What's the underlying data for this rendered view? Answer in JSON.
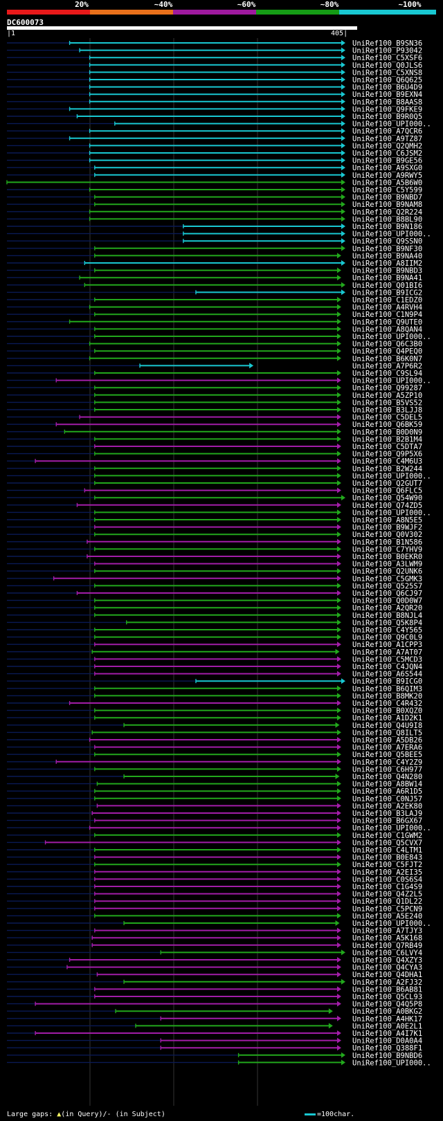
{
  "header": {
    "legend": [
      {
        "label": "20%",
        "color": "#e8191a"
      },
      {
        "label": "~40%",
        "color": "#e8701b"
      },
      {
        "label": "~60%",
        "color": "#9e1a9e"
      },
      {
        "label": "~80%",
        "color": "#159c15"
      },
      {
        "label": "~100%",
        "color": "#19c8d2"
      }
    ],
    "query_id": "DC600073",
    "ruler_start": "1",
    "ruler_end": "405"
  },
  "footer": {
    "large_gaps_label": "Large gaps:",
    "query_marker_text": "(in Query)/",
    "subject_marker_text": "(in Subject)",
    "scale_text": "=100char."
  },
  "chart_data": {
    "type": "alignment-overview",
    "query_length": 405,
    "x_range": [
      1,
      405
    ],
    "identity_classes": {
      "cyan": "~100%",
      "green": "~80%",
      "purple": "~60%"
    },
    "hits": [
      {
        "name": "UniRef100_B9SN36",
        "start": 76,
        "end": 405,
        "class": "cyan"
      },
      {
        "name": "UniRef100_P93042",
        "start": 88,
        "end": 405,
        "class": "cyan"
      },
      {
        "name": "UniRef100_C5XSF6",
        "start": 100,
        "end": 405,
        "class": "cyan"
      },
      {
        "name": "UniRef100_Q0JLS6",
        "start": 100,
        "end": 405,
        "class": "cyan"
      },
      {
        "name": "UniRef100_C5XNS8",
        "start": 100,
        "end": 405,
        "class": "cyan"
      },
      {
        "name": "UniRef100_Q6Q625",
        "start": 100,
        "end": 405,
        "class": "cyan"
      },
      {
        "name": "UniRef100_B6U4D9",
        "start": 100,
        "end": 405,
        "class": "cyan"
      },
      {
        "name": "UniRef100_B9EXN4",
        "start": 100,
        "end": 405,
        "class": "cyan"
      },
      {
        "name": "UniRef100_B8AAS8",
        "start": 100,
        "end": 405,
        "class": "cyan"
      },
      {
        "name": "UniRef100_Q9FKE9",
        "start": 76,
        "end": 405,
        "class": "cyan"
      },
      {
        "name": "UniRef100_B9R0Q5",
        "start": 85,
        "end": 405,
        "class": "cyan"
      },
      {
        "name": "UniRef100_UPI000..",
        "start": 130,
        "end": 405,
        "class": "cyan"
      },
      {
        "name": "UniRef100_A7QCR6",
        "start": 100,
        "end": 405,
        "class": "cyan"
      },
      {
        "name": "UniRef100_A9TZ87",
        "start": 76,
        "end": 405,
        "class": "cyan"
      },
      {
        "name": "UniRef100_Q2QMH2",
        "start": 100,
        "end": 405,
        "class": "cyan"
      },
      {
        "name": "UniRef100_C6JSM2",
        "start": 100,
        "end": 405,
        "class": "cyan"
      },
      {
        "name": "UniRef100_B9GE56",
        "start": 100,
        "end": 405,
        "class": "cyan"
      },
      {
        "name": "UniRef100_A9SXG0",
        "start": 106,
        "end": 405,
        "class": "cyan"
      },
      {
        "name": "UniRef100_A9RWY5",
        "start": 106,
        "end": 405,
        "class": "cyan"
      },
      {
        "name": "UniRef100_A5B6W0",
        "start": 1,
        "end": 405,
        "class": "green"
      },
      {
        "name": "UniRef100_C5Y599",
        "start": 100,
        "end": 405,
        "class": "green"
      },
      {
        "name": "UniRef100_B9NBD7",
        "start": 106,
        "end": 405,
        "class": "green"
      },
      {
        "name": "UniRef100_B9NAM8",
        "start": 106,
        "end": 405,
        "class": "green"
      },
      {
        "name": "UniRef100_Q2R224",
        "start": 100,
        "end": 405,
        "class": "green"
      },
      {
        "name": "UniRef100_B8BL90",
        "start": 100,
        "end": 405,
        "class": "green"
      },
      {
        "name": "UniRef100_B9N186",
        "start": 212,
        "end": 405,
        "class": "cyan"
      },
      {
        "name": "UniRef100_UPI000..",
        "start": 212,
        "end": 405,
        "class": "cyan"
      },
      {
        "name": "UniRef100_Q9SSN0",
        "start": 212,
        "end": 405,
        "class": "cyan"
      },
      {
        "name": "UniRef100_B9NF30",
        "start": 106,
        "end": 405,
        "class": "green"
      },
      {
        "name": "UniRef100_B9NA40",
        "start": 106,
        "end": 400,
        "class": "green"
      },
      {
        "name": "UniRef100_A8IIM2",
        "start": 94,
        "end": 405,
        "class": "cyan"
      },
      {
        "name": "UniRef100_B9NBD3",
        "start": 106,
        "end": 400,
        "class": "green"
      },
      {
        "name": "UniRef100_B9NA41",
        "start": 88,
        "end": 400,
        "class": "green"
      },
      {
        "name": "UniRef100_Q01BI6",
        "start": 94,
        "end": 405,
        "class": "green"
      },
      {
        "name": "UniRef100_B9ICG2",
        "start": 227,
        "end": 405,
        "class": "cyan"
      },
      {
        "name": "UniRef100_C1EDZ0",
        "start": 106,
        "end": 400,
        "class": "green"
      },
      {
        "name": "UniRef100_A4RVH4",
        "start": 100,
        "end": 400,
        "class": "green"
      },
      {
        "name": "UniRef100_C1N9P4",
        "start": 106,
        "end": 400,
        "class": "green"
      },
      {
        "name": "UniRef100_Q9UTE0",
        "start": 76,
        "end": 400,
        "class": "green"
      },
      {
        "name": "UniRef100_A8QAN4",
        "start": 106,
        "end": 400,
        "class": "green"
      },
      {
        "name": "UniRef100_UPI000..",
        "start": 106,
        "end": 400,
        "class": "green"
      },
      {
        "name": "UniRef100_Q6C3B0",
        "start": 100,
        "end": 400,
        "class": "green"
      },
      {
        "name": "UniRef100_Q4PEQ0",
        "start": 106,
        "end": 400,
        "class": "green"
      },
      {
        "name": "UniRef100_B6K0N7",
        "start": 100,
        "end": 400,
        "class": "green"
      },
      {
        "name": "UniRef100_A7P6R2",
        "start": 160,
        "end": 295,
        "class": "cyan"
      },
      {
        "name": "UniRef100_C9SL94",
        "start": 106,
        "end": 400,
        "class": "green"
      },
      {
        "name": "UniRef100_UPI000..",
        "start": 60,
        "end": 400,
        "class": "purple"
      },
      {
        "name": "UniRef100_Q99287",
        "start": 106,
        "end": 400,
        "class": "green"
      },
      {
        "name": "UniRef100_A5ZP10",
        "start": 106,
        "end": 400,
        "class": "green"
      },
      {
        "name": "UniRef100_B5VS52",
        "start": 106,
        "end": 400,
        "class": "green"
      },
      {
        "name": "UniRef100_B3LJJ8",
        "start": 106,
        "end": 400,
        "class": "green"
      },
      {
        "name": "UniRef100_C5DEL5",
        "start": 88,
        "end": 400,
        "class": "purple"
      },
      {
        "name": "UniRef100_Q6BK59",
        "start": 60,
        "end": 400,
        "class": "purple"
      },
      {
        "name": "UniRef100_B0D0N9",
        "start": 70,
        "end": 400,
        "class": "green"
      },
      {
        "name": "UniRef100_B2B1M4",
        "start": 106,
        "end": 400,
        "class": "green"
      },
      {
        "name": "UniRef100_C5DTA7",
        "start": 106,
        "end": 400,
        "class": "purple"
      },
      {
        "name": "UniRef100_Q9P5X6",
        "start": 106,
        "end": 400,
        "class": "green"
      },
      {
        "name": "UniRef100_C4M6U3",
        "start": 35,
        "end": 400,
        "class": "purple"
      },
      {
        "name": "UniRef100_B2W244",
        "start": 106,
        "end": 400,
        "class": "green"
      },
      {
        "name": "UniRef100_UPI000..",
        "start": 106,
        "end": 400,
        "class": "green"
      },
      {
        "name": "UniRef100_Q2GUT7",
        "start": 106,
        "end": 400,
        "class": "green"
      },
      {
        "name": "UniRef100_Q6FLC5",
        "start": 94,
        "end": 400,
        "class": "purple"
      },
      {
        "name": "UniRef100_Q54W90",
        "start": 106,
        "end": 405,
        "class": "green"
      },
      {
        "name": "UniRef100_Q74ZD5",
        "start": 85,
        "end": 400,
        "class": "purple"
      },
      {
        "name": "UniRef100_UPI000..",
        "start": 106,
        "end": 400,
        "class": "green"
      },
      {
        "name": "UniRef100_A8N5E5",
        "start": 106,
        "end": 400,
        "class": "green"
      },
      {
        "name": "UniRef100_B9WJF2",
        "start": 106,
        "end": 400,
        "class": "purple"
      },
      {
        "name": "UniRef100_Q0V302",
        "start": 106,
        "end": 400,
        "class": "green"
      },
      {
        "name": "UniRef100_B1N586",
        "start": 97,
        "end": 400,
        "class": "purple"
      },
      {
        "name": "UniRef100_C7YHV9",
        "start": 106,
        "end": 400,
        "class": "green"
      },
      {
        "name": "UniRef100_B0EKR0",
        "start": 97,
        "end": 400,
        "class": "purple"
      },
      {
        "name": "UniRef100_A3LWM9",
        "start": 106,
        "end": 400,
        "class": "purple"
      },
      {
        "name": "UniRef100_Q2UNK6",
        "start": 106,
        "end": 400,
        "class": "green"
      },
      {
        "name": "UniRef100_C5GMK3",
        "start": 57,
        "end": 400,
        "class": "purple"
      },
      {
        "name": "UniRef100_Q525S7",
        "start": 106,
        "end": 400,
        "class": "green"
      },
      {
        "name": "UniRef100_Q6CJ97",
        "start": 85,
        "end": 400,
        "class": "purple"
      },
      {
        "name": "UniRef100_Q0D0W7",
        "start": 106,
        "end": 400,
        "class": "green"
      },
      {
        "name": "UniRef100_A2QR20",
        "start": 106,
        "end": 400,
        "class": "green"
      },
      {
        "name": "UniRef100_B8NJL4",
        "start": 106,
        "end": 400,
        "class": "green"
      },
      {
        "name": "UniRef100_Q5K8P4",
        "start": 144,
        "end": 400,
        "class": "green"
      },
      {
        "name": "UniRef100_C4Y565",
        "start": 106,
        "end": 400,
        "class": "green"
      },
      {
        "name": "UniRef100_Q9C0L9",
        "start": 106,
        "end": 400,
        "class": "green"
      },
      {
        "name": "UniRef100_A1CPP3",
        "start": 106,
        "end": 400,
        "class": "purple"
      },
      {
        "name": "UniRef100_A7AT07",
        "start": 103,
        "end": 398,
        "class": "green"
      },
      {
        "name": "UniRef100_C5MCD3",
        "start": 106,
        "end": 400,
        "class": "purple"
      },
      {
        "name": "UniRef100_C4JQN4",
        "start": 106,
        "end": 400,
        "class": "purple"
      },
      {
        "name": "UniRef100_A6S544",
        "start": 106,
        "end": 400,
        "class": "purple"
      },
      {
        "name": "UniRef100_B9ICG0",
        "start": 227,
        "end": 405,
        "class": "cyan"
      },
      {
        "name": "UniRef100_B6QIM3",
        "start": 106,
        "end": 400,
        "class": "green"
      },
      {
        "name": "UniRef100_B8MK20",
        "start": 106,
        "end": 400,
        "class": "green"
      },
      {
        "name": "UniRef100_C4R432",
        "start": 76,
        "end": 400,
        "class": "purple"
      },
      {
        "name": "UniRef100_B0XQZ0",
        "start": 106,
        "end": 400,
        "class": "green"
      },
      {
        "name": "UniRef100_A1D2K1",
        "start": 106,
        "end": 400,
        "class": "green"
      },
      {
        "name": "UniRef100_Q4U9I8",
        "start": 141,
        "end": 398,
        "class": "green"
      },
      {
        "name": "UniRef100_Q8ILT5",
        "start": 103,
        "end": 400,
        "class": "green"
      },
      {
        "name": "UniRef100_A5DB26",
        "start": 100,
        "end": 400,
        "class": "purple"
      },
      {
        "name": "UniRef100_A7ERA6",
        "start": 106,
        "end": 400,
        "class": "purple"
      },
      {
        "name": "UniRef100_Q5BEE5",
        "start": 106,
        "end": 400,
        "class": "green"
      },
      {
        "name": "UniRef100_C4Y2Z9",
        "start": 60,
        "end": 400,
        "class": "purple"
      },
      {
        "name": "UniRef100_C6H977",
        "start": 106,
        "end": 400,
        "class": "green"
      },
      {
        "name": "UniRef100_Q4N280",
        "start": 141,
        "end": 398,
        "class": "green"
      },
      {
        "name": "UniRef100_A8BW14",
        "start": 109,
        "end": 400,
        "class": "green"
      },
      {
        "name": "UniRef100_A6R1D5",
        "start": 106,
        "end": 400,
        "class": "green"
      },
      {
        "name": "UniRef100_C0NJ57",
        "start": 106,
        "end": 400,
        "class": "green"
      },
      {
        "name": "UniRef100_A2EK80",
        "start": 109,
        "end": 400,
        "class": "purple"
      },
      {
        "name": "UniRef100_B3LAJ9",
        "start": 103,
        "end": 400,
        "class": "purple"
      },
      {
        "name": "UniRef100_B6GX67",
        "start": 106,
        "end": 400,
        "class": "purple"
      },
      {
        "name": "UniRef100_UPI000..",
        "start": 100,
        "end": 400,
        "class": "purple"
      },
      {
        "name": "UniRef100_C1GWM2",
        "start": 106,
        "end": 400,
        "class": "green"
      },
      {
        "name": "UniRef100_Q5CVX7",
        "start": 47,
        "end": 400,
        "class": "purple"
      },
      {
        "name": "UniRef100_C4LTM1",
        "start": 106,
        "end": 400,
        "class": "green"
      },
      {
        "name": "UniRef100_B0E843",
        "start": 106,
        "end": 400,
        "class": "purple"
      },
      {
        "name": "UniRef100_C5FJT2",
        "start": 106,
        "end": 400,
        "class": "green"
      },
      {
        "name": "UniRef100_A2EI35",
        "start": 106,
        "end": 400,
        "class": "purple"
      },
      {
        "name": "UniRef100_C0S6S4",
        "start": 106,
        "end": 400,
        "class": "purple"
      },
      {
        "name": "UniRef100_C1G4S9",
        "start": 106,
        "end": 400,
        "class": "purple"
      },
      {
        "name": "UniRef100_Q4Z2L5",
        "start": 106,
        "end": 400,
        "class": "purple"
      },
      {
        "name": "UniRef100_Q1DL22",
        "start": 106,
        "end": 400,
        "class": "purple"
      },
      {
        "name": "UniRef100_C5PCN9",
        "start": 106,
        "end": 400,
        "class": "purple"
      },
      {
        "name": "UniRef100_A5E240",
        "start": 106,
        "end": 400,
        "class": "green"
      },
      {
        "name": "UniRef100_UPI000..",
        "start": 141,
        "end": 398,
        "class": "green"
      },
      {
        "name": "UniRef100_A7TJY3",
        "start": 106,
        "end": 400,
        "class": "purple"
      },
      {
        "name": "UniRef100_A5K168",
        "start": 103,
        "end": 400,
        "class": "purple"
      },
      {
        "name": "UniRef100_Q7RB49",
        "start": 103,
        "end": 400,
        "class": "purple"
      },
      {
        "name": "UniRef100_C6LVY4",
        "start": 185,
        "end": 405,
        "class": "green"
      },
      {
        "name": "UniRef100_Q4XZY3",
        "start": 76,
        "end": 400,
        "class": "purple"
      },
      {
        "name": "UniRef100_Q4CYA3",
        "start": 73,
        "end": 400,
        "class": "purple"
      },
      {
        "name": "UniRef100_Q4DHA1",
        "start": 109,
        "end": 400,
        "class": "purple"
      },
      {
        "name": "UniRef100_A2FJ32",
        "start": 141,
        "end": 405,
        "class": "green"
      },
      {
        "name": "UniRef100_B6AB81",
        "start": 106,
        "end": 400,
        "class": "purple"
      },
      {
        "name": "UniRef100_Q5CL93",
        "start": 106,
        "end": 400,
        "class": "purple"
      },
      {
        "name": "UniRef100_Q4Q5P8",
        "start": 35,
        "end": 400,
        "class": "purple"
      },
      {
        "name": "UniRef100_A0BKG2",
        "start": 131,
        "end": 390,
        "class": "green"
      },
      {
        "name": "UniRef100_A4HK17",
        "start": 185,
        "end": 400,
        "class": "purple"
      },
      {
        "name": "UniRef100_A0E2L1",
        "start": 155,
        "end": 390,
        "class": "green"
      },
      {
        "name": "UniRef100_A4I7K1",
        "start": 35,
        "end": 400,
        "class": "purple"
      },
      {
        "name": "UniRef100_D0A0A4",
        "start": 185,
        "end": 400,
        "class": "purple"
      },
      {
        "name": "UniRef100_Q388F1",
        "start": 185,
        "end": 400,
        "class": "purple"
      },
      {
        "name": "UniRef100_B9NBD6",
        "start": 278,
        "end": 405,
        "class": "green"
      },
      {
        "name": "UniRef100_UPI000..",
        "start": 278,
        "end": 405,
        "class": "green"
      }
    ]
  }
}
